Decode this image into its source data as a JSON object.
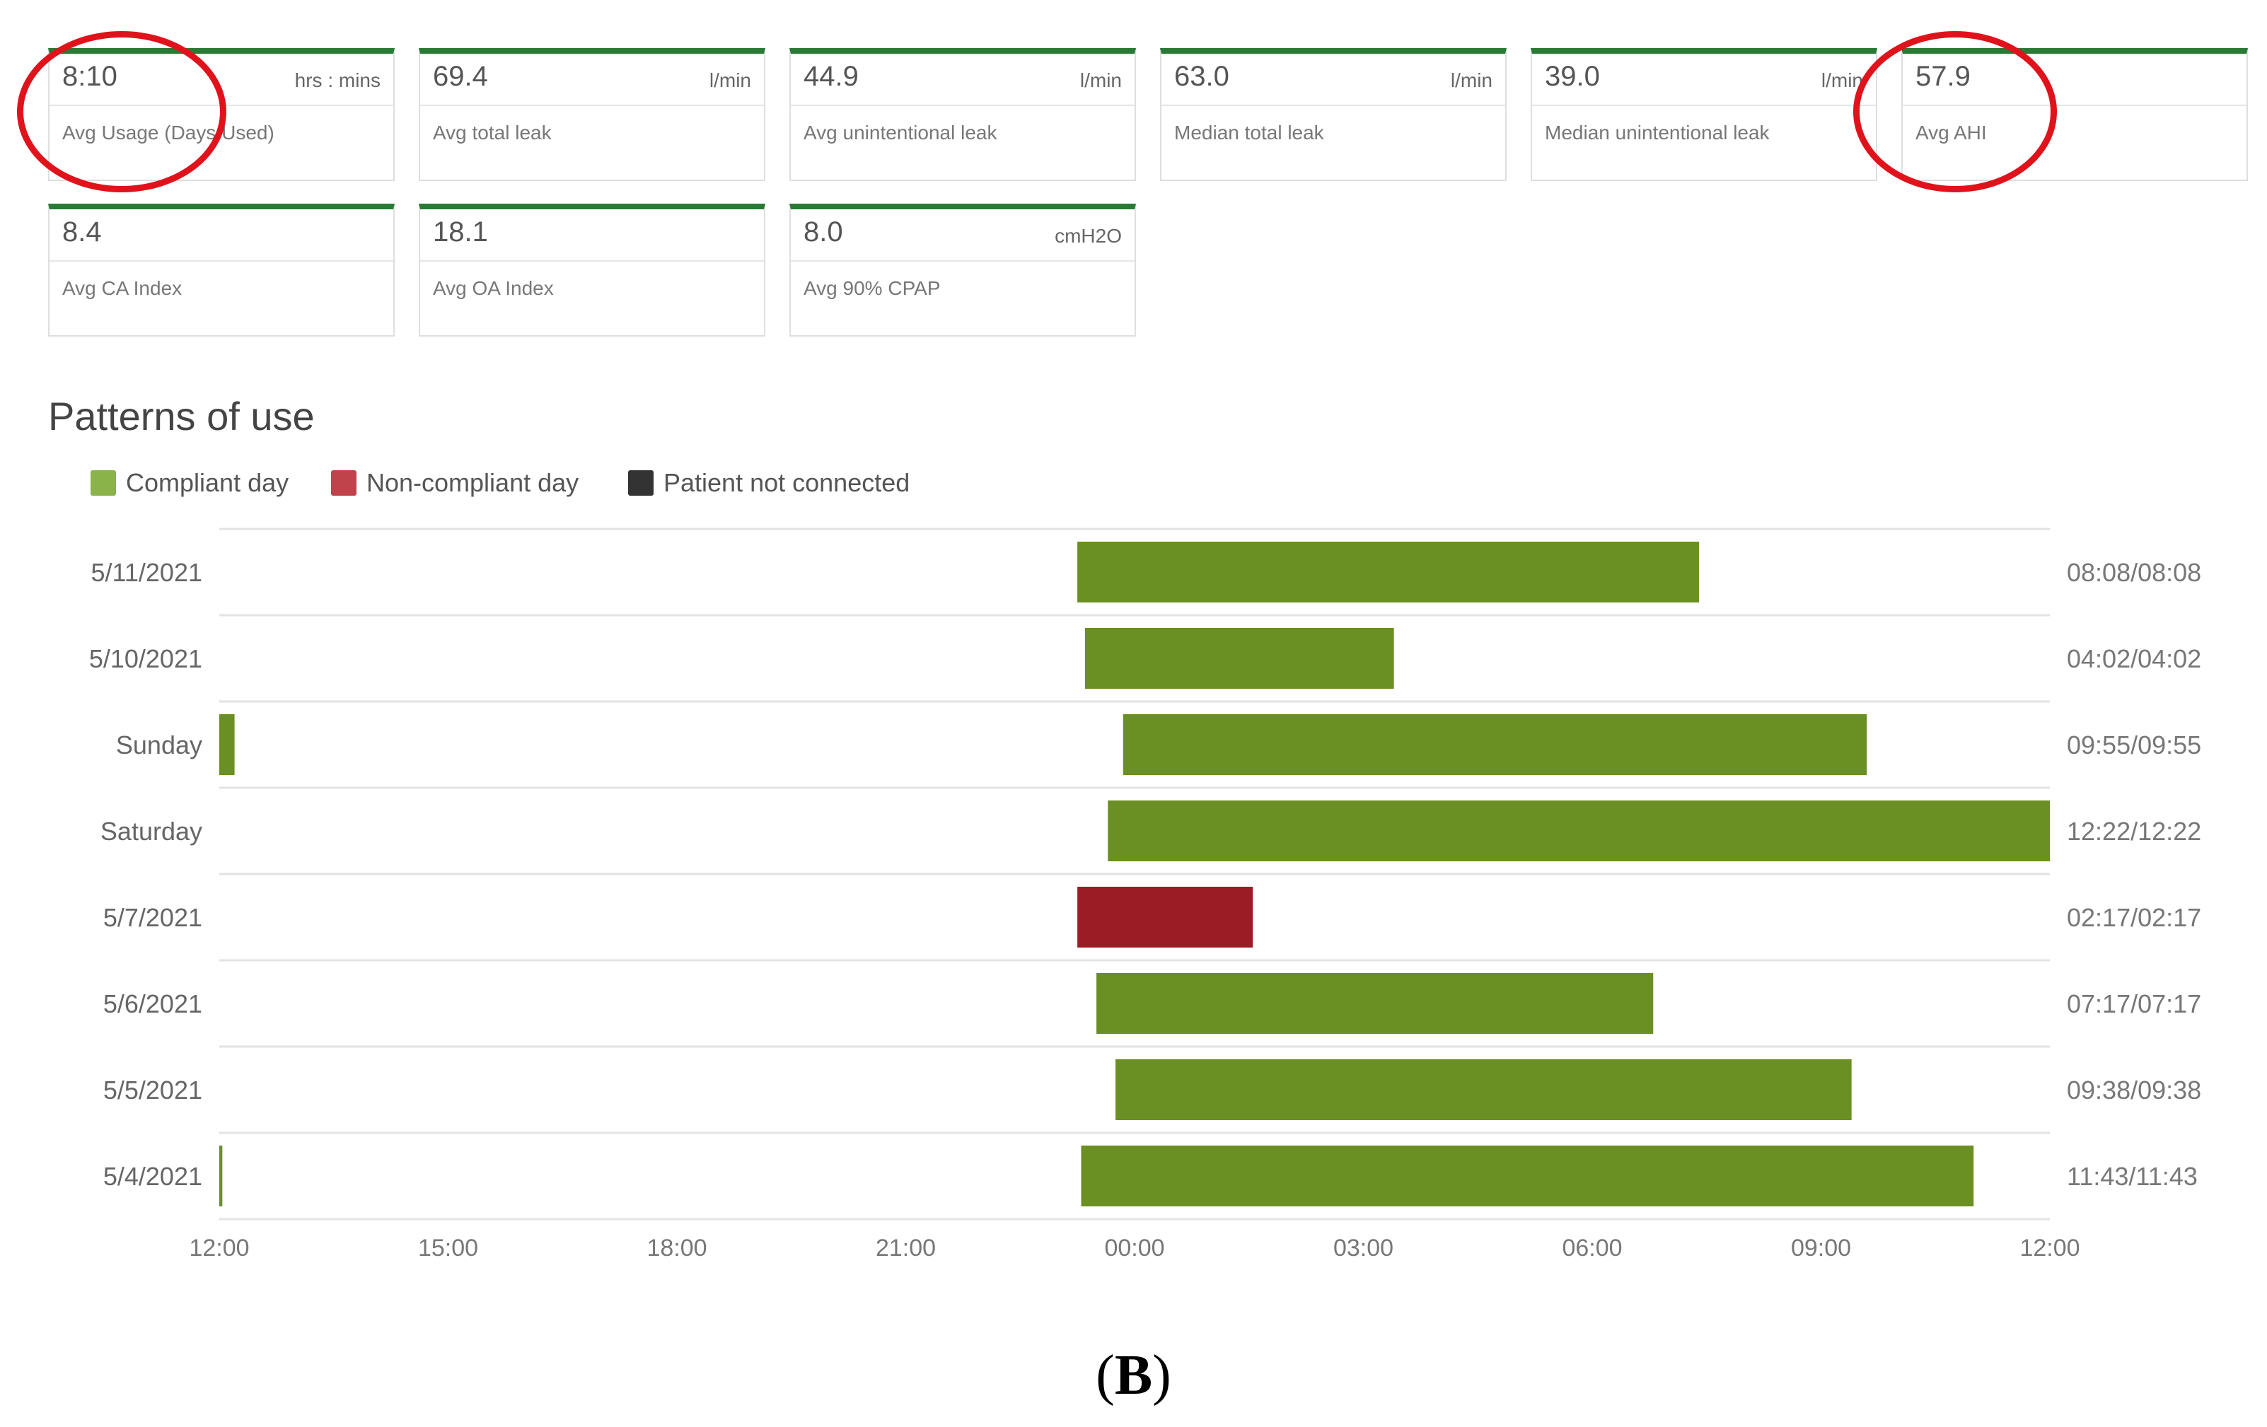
{
  "cards": [
    {
      "value": "8:10",
      "unit": "hrs : mins",
      "label": "Avg Usage (Days Used)"
    },
    {
      "value": "69.4",
      "unit": "l/min",
      "label": "Avg total leak"
    },
    {
      "value": "44.9",
      "unit": "l/min",
      "label": "Avg unintentional leak"
    },
    {
      "value": "63.0",
      "unit": "l/min",
      "label": "Median total leak"
    },
    {
      "value": "39.0",
      "unit": "l/min",
      "label": "Median unintentional leak"
    },
    {
      "value": "57.9",
      "unit": "",
      "label": "Avg AHI"
    },
    {
      "value": "8.4",
      "unit": "",
      "label": "Avg CA Index"
    },
    {
      "value": "18.1",
      "unit": "",
      "label": "Avg OA Index"
    },
    {
      "value": "8.0",
      "unit": "cmH2O",
      "label": "Avg 90% CPAP"
    }
  ],
  "colors": {
    "compliant": "#6a8f22",
    "noncompliant": "#9b1c24",
    "not_connected": "#333333",
    "card_top": "#2a7a35",
    "highlight_circle": "#e0121b"
  },
  "chart_data": {
    "type": "bar",
    "subtype": "horizontal-timeline",
    "title": "Patterns of use",
    "legend": [
      {
        "name": "Compliant day",
        "color": "#8ab34a"
      },
      {
        "name": "Non-compliant day",
        "color": "#c0434c"
      },
      {
        "name": "Patient not connected",
        "color": "#333333"
      }
    ],
    "x_axis": {
      "unit": "hours from 12:00 (noon)",
      "range": [
        0,
        24
      ],
      "ticks": [
        0,
        3,
        6,
        9,
        12,
        15,
        18,
        21,
        24
      ],
      "tick_labels": [
        "12:00",
        "15:00",
        "18:00",
        "21:00",
        "00:00",
        "03:00",
        "06:00",
        "09:00",
        "12:00"
      ]
    },
    "rows": [
      {
        "label": "5/11/2021",
        "total": "08:08/08:08",
        "segments": [
          {
            "start": 11.25,
            "end": 19.4,
            "status": "compliant"
          }
        ]
      },
      {
        "label": "5/10/2021",
        "total": "04:02/04:02",
        "segments": [
          {
            "start": 11.35,
            "end": 15.4,
            "status": "compliant"
          }
        ]
      },
      {
        "label": "Sunday",
        "total": "09:55/09:55",
        "segments": [
          {
            "start": 0.0,
            "end": 0.2,
            "status": "compliant"
          },
          {
            "start": 11.85,
            "end": 21.6,
            "status": "compliant"
          }
        ]
      },
      {
        "label": "Saturday",
        "total": "12:22/12:22",
        "segments": [
          {
            "start": 11.65,
            "end": 24.0,
            "status": "compliant"
          }
        ]
      },
      {
        "label": "5/7/2021",
        "total": "02:17/02:17",
        "segments": [
          {
            "start": 11.25,
            "end": 13.55,
            "status": "noncompliant"
          }
        ]
      },
      {
        "label": "5/6/2021",
        "total": "07:17/07:17",
        "segments": [
          {
            "start": 11.5,
            "end": 18.8,
            "status": "compliant"
          }
        ]
      },
      {
        "label": "5/5/2021",
        "total": "09:38/09:38",
        "segments": [
          {
            "start": 11.75,
            "end": 21.4,
            "status": "compliant"
          }
        ]
      },
      {
        "label": "5/4/2021",
        "total": "11:43/11:43",
        "segments": [
          {
            "start": 0.0,
            "end": 0.04,
            "status": "compliant"
          },
          {
            "start": 11.3,
            "end": 23.0,
            "status": "compliant"
          }
        ]
      }
    ]
  },
  "caption": {
    "paren_open": "(",
    "letter": "B",
    "paren_close": ")"
  }
}
